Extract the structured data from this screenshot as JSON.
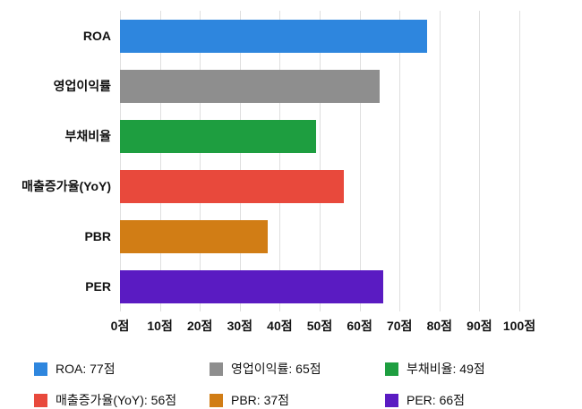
{
  "chart_data": {
    "type": "bar",
    "orientation": "horizontal",
    "title": "",
    "xlabel": "",
    "ylabel": "",
    "categories": [
      "ROA",
      "영업이익률",
      "부채비율",
      "매출증가율(YoY)",
      "PBR",
      "PER"
    ],
    "values": [
      77,
      65,
      49,
      56,
      37,
      66
    ],
    "colors": [
      "#2e86de",
      "#8e8e8e",
      "#1e9e40",
      "#e8493c",
      "#d17d15",
      "#5a1bc2"
    ],
    "xlim": [
      0,
      100
    ],
    "x_ticks": [
      0,
      10,
      20,
      30,
      40,
      50,
      60,
      70,
      80,
      90,
      100
    ],
    "x_tick_suffix": "점",
    "grid": true,
    "legend": {
      "position": "bottom",
      "items": [
        {
          "label": "ROA: 77점",
          "color": "#2e86de"
        },
        {
          "label": "영업이익률: 65점",
          "color": "#8e8e8e"
        },
        {
          "label": "부채비율: 49점",
          "color": "#1e9e40"
        },
        {
          "label": "매출증가율(YoY): 56점",
          "color": "#e8493c"
        },
        {
          "label": "PBR: 37점",
          "color": "#d17d15"
        },
        {
          "label": "PER: 66점",
          "color": "#5a1bc2"
        }
      ]
    }
  }
}
